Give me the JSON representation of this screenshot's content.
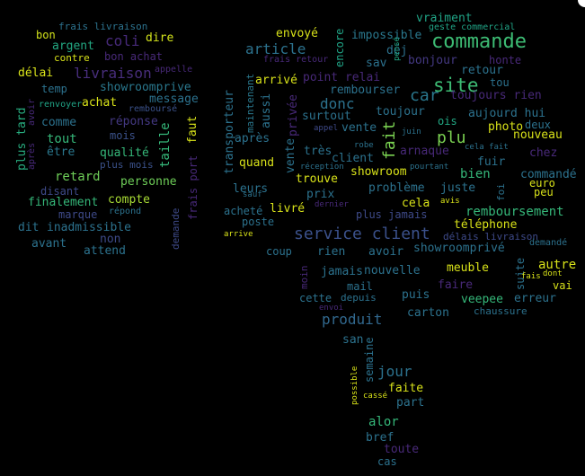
{
  "palette": {
    "background": "#000000",
    "yellow": "#d8e219",
    "lightgreen": "#8fd744",
    "green": "#35b779",
    "teal": "#21918c",
    "cyan": "#1fa187",
    "blue": "#31688e",
    "indigo": "#443a83",
    "purple": "#440154"
  },
  "words": [
    {
      "text": "commande",
      "color": "#3dbc74"
    },
    {
      "text": "service client",
      "color": "#3b518b"
    },
    {
      "text": "site",
      "color": "#3dbc74"
    },
    {
      "text": "livraison",
      "color": "#472d7b"
    },
    {
      "text": "article",
      "color": "#2c728e"
    },
    {
      "text": "coli",
      "color": "#472a7a"
    },
    {
      "text": "produit",
      "color": "#31688e"
    },
    {
      "text": "car",
      "color": "#2a788e"
    },
    {
      "text": "donc",
      "color": "#2c728e"
    },
    {
      "text": "plu",
      "color": "#7ad151"
    },
    {
      "text": "fait",
      "color": "#7ad151"
    },
    {
      "text": "remboursement",
      "color": "#35b779"
    },
    {
      "text": "frais livraison",
      "color": "#2c728e"
    },
    {
      "text": "bon",
      "color": "#d2e21b"
    },
    {
      "text": "dire",
      "color": "#d2e21b"
    },
    {
      "text": "argent",
      "color": "#23a983"
    },
    {
      "text": "contre",
      "color": "#d8e219"
    },
    {
      "text": "bon achat",
      "color": "#482979"
    },
    {
      "text": "délai",
      "color": "#d8e219"
    },
    {
      "text": "appelle",
      "color": "#482979"
    },
    {
      "text": "temp",
      "color": "#2c728e"
    },
    {
      "text": "showroomprive",
      "color": "#2a788e"
    },
    {
      "text": "message",
      "color": "#2c728e"
    },
    {
      "text": "renvoyer",
      "color": "#20a486"
    },
    {
      "text": "achat",
      "color": "#d8e219"
    },
    {
      "text": "remboursé",
      "color": "#3b528b"
    },
    {
      "text": "comme",
      "color": "#2c728e"
    },
    {
      "text": "réponse",
      "color": "#443983"
    },
    {
      "text": "faut",
      "color": "#d8e219"
    },
    {
      "text": "plus tard",
      "color": "#28ae80"
    },
    {
      "text": "après",
      "color": "#482979"
    },
    {
      "text": "avoir",
      "color": "#482979"
    },
    {
      "text": "tout",
      "color": "#35b779"
    },
    {
      "text": "mois",
      "color": "#3b528b"
    },
    {
      "text": "être",
      "color": "#2a788e"
    },
    {
      "text": "qualité",
      "color": "#35b779"
    },
    {
      "text": "taille",
      "color": "#35b779"
    },
    {
      "text": "plus mois",
      "color": "#3b528b"
    },
    {
      "text": "frais port",
      "color": "#482979"
    },
    {
      "text": "retard",
      "color": "#6ece58"
    },
    {
      "text": "personne",
      "color": "#6ece58"
    },
    {
      "text": "disant",
      "color": "#3e4a89"
    },
    {
      "text": "finalement",
      "color": "#35b779"
    },
    {
      "text": "compte",
      "color": "#a8db34"
    },
    {
      "text": "marque",
      "color": "#3e4a89"
    },
    {
      "text": "répond",
      "color": "#2c728e"
    },
    {
      "text": "dit",
      "color": "#2c728e"
    },
    {
      "text": "inadmissible",
      "color": "#2c728e"
    },
    {
      "text": "demande",
      "color": "#3e4a89"
    },
    {
      "text": "avant",
      "color": "#2c728e"
    },
    {
      "text": "non",
      "color": "#3e4a89"
    },
    {
      "text": "attend",
      "color": "#2c728e"
    },
    {
      "text": "envoyé",
      "color": "#d8e219"
    },
    {
      "text": "encore",
      "color": "#20a486"
    },
    {
      "text": "impossible",
      "color": "#2a788e"
    },
    {
      "text": "vraiment",
      "color": "#20a486"
    },
    {
      "text": "geste commercial",
      "color": "#20a486"
    },
    {
      "text": "déj",
      "color": "#2c728e"
    },
    {
      "text": "pensé",
      "color": "#22a884"
    },
    {
      "text": "honte",
      "color": "#482979"
    },
    {
      "text": "frais retour",
      "color": "#482979"
    },
    {
      "text": "sav",
      "color": "#2c728e"
    },
    {
      "text": "bonjour",
      "color": "#443983"
    },
    {
      "text": "retour",
      "color": "#2c728e"
    },
    {
      "text": "maintenant",
      "color": "#2a788e"
    },
    {
      "text": "arrivé",
      "color": "#d8e219"
    },
    {
      "text": "point relai",
      "color": "#482979"
    },
    {
      "text": "tou",
      "color": "#2c728e"
    },
    {
      "text": "transporteur",
      "color": "#2c728e"
    },
    {
      "text": "aussi",
      "color": "#2c728e"
    },
    {
      "text": "rembourser",
      "color": "#2c728e"
    },
    {
      "text": "toujours rien",
      "color": "#482979"
    },
    {
      "text": "privée",
      "color": "#482979"
    },
    {
      "text": "surtout",
      "color": "#2c728e"
    },
    {
      "text": "toujour",
      "color": "#2c728e"
    },
    {
      "text": "aujourd hui",
      "color": "#2c728e"
    },
    {
      "text": "ois",
      "color": "#22a884"
    },
    {
      "text": "appel",
      "color": "#3e4a89"
    },
    {
      "text": "vente",
      "color": "#2c728e"
    },
    {
      "text": "juin",
      "color": "#2c728e"
    },
    {
      "text": "photo",
      "color": "#d8e219"
    },
    {
      "text": "deux",
      "color": "#2c728e"
    },
    {
      "text": "après",
      "color": "#2c728e"
    },
    {
      "text": "nouveau",
      "color": "#d8e219"
    },
    {
      "text": "robe",
      "color": "#2c728e"
    },
    {
      "text": "cela fait",
      "color": "#2c728e"
    },
    {
      "text": "chez",
      "color": "#482979"
    },
    {
      "text": "très",
      "color": "#2c728e"
    },
    {
      "text": "arnaque",
      "color": "#482979"
    },
    {
      "text": "quand",
      "color": "#d8e219"
    },
    {
      "text": "vente",
      "color": "#2c728e"
    },
    {
      "text": "client",
      "color": "#2c728e"
    },
    {
      "text": "fuir",
      "color": "#2c728e"
    },
    {
      "text": "réception",
      "color": "#2c728e"
    },
    {
      "text": "showroom",
      "color": "#d8e219"
    },
    {
      "text": "pourtant",
      "color": "#2c728e"
    },
    {
      "text": "bien",
      "color": "#35b779"
    },
    {
      "text": "commandé",
      "color": "#2c728e"
    },
    {
      "text": "trouve",
      "color": "#d8e219"
    },
    {
      "text": "euro",
      "color": "#d8e219"
    },
    {
      "text": "leurs",
      "color": "#2c728e"
    },
    {
      "text": "foi",
      "color": "#2c728e"
    },
    {
      "text": "problème",
      "color": "#2c728e"
    },
    {
      "text": "juste",
      "color": "#2c728e"
    },
    {
      "text": "peu",
      "color": "#d8e219"
    },
    {
      "text": "sauf",
      "color": "#2c728e"
    },
    {
      "text": "prix",
      "color": "#2c728e"
    },
    {
      "text": "dernier",
      "color": "#482979"
    },
    {
      "text": "acheté",
      "color": "#2c728e"
    },
    {
      "text": "livré",
      "color": "#d8e219"
    },
    {
      "text": "cela",
      "color": "#d8e219"
    },
    {
      "text": "avis",
      "color": "#d8e219"
    },
    {
      "text": "plus jamais",
      "color": "#3e4a89"
    },
    {
      "text": "poste",
      "color": "#2c728e"
    },
    {
      "text": "téléphone",
      "color": "#d8e219"
    },
    {
      "text": "arrive",
      "color": "#d8e219"
    },
    {
      "text": "délais livraison",
      "color": "#3e4a89"
    },
    {
      "text": "demandé",
      "color": "#2c728e"
    },
    {
      "text": "coup",
      "color": "#2c728e"
    },
    {
      "text": "rien",
      "color": "#2c728e"
    },
    {
      "text": "avoir",
      "color": "#2c728e"
    },
    {
      "text": "showroomprivé",
      "color": "#2c728e"
    },
    {
      "text": "suite",
      "color": "#2c728e"
    },
    {
      "text": "autre",
      "color": "#d8e219"
    },
    {
      "text": "dont",
      "color": "#d8e219"
    },
    {
      "text": "jamais",
      "color": "#2c728e"
    },
    {
      "text": "nouvelle",
      "color": "#2c728e"
    },
    {
      "text": "meuble",
      "color": "#d8e219"
    },
    {
      "text": "fais",
      "color": "#d8e219"
    },
    {
      "text": "vai",
      "color": "#d8e219"
    },
    {
      "text": "moin",
      "color": "#482979"
    },
    {
      "text": "mail",
      "color": "#2c728e"
    },
    {
      "text": "faire",
      "color": "#482979"
    },
    {
      "text": "cette",
      "color": "#2c728e"
    },
    {
      "text": "depuis",
      "color": "#2c728e"
    },
    {
      "text": "puis",
      "color": "#2c728e"
    },
    {
      "text": "veepee",
      "color": "#35b779"
    },
    {
      "text": "erreur",
      "color": "#2c728e"
    },
    {
      "text": "envoi",
      "color": "#482979"
    },
    {
      "text": "carton",
      "color": "#2c728e"
    },
    {
      "text": "chaussure",
      "color": "#2c728e"
    },
    {
      "text": "san",
      "color": "#2c728e"
    },
    {
      "text": "semaine",
      "color": "#2c728e"
    },
    {
      "text": "jour",
      "color": "#2c728e"
    },
    {
      "text": "possible",
      "color": "#d8e219"
    },
    {
      "text": "faite",
      "color": "#d8e219"
    },
    {
      "text": "cassé",
      "color": "#d8e219"
    },
    {
      "text": "part",
      "color": "#2c728e"
    },
    {
      "text": "alor",
      "color": "#35b779"
    },
    {
      "text": "bref",
      "color": "#2c728e"
    },
    {
      "text": "toute",
      "color": "#482979"
    },
    {
      "text": "cas",
      "color": "#2c728e"
    }
  ]
}
